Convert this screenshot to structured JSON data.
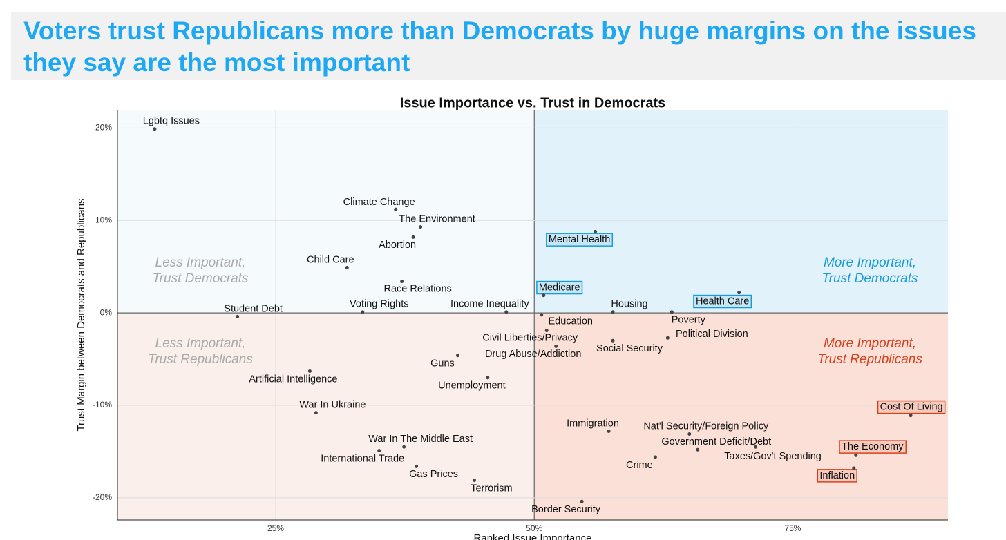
{
  "header": {
    "title": "Voters trust Republicans more than Democrats by huge margins on the issues they say are the most important"
  },
  "chart_data": {
    "type": "scatter",
    "title": "Issue Importance vs. Trust in Democrats",
    "x_label": "Ranked Issue Importance",
    "y_label": "Trust Margin between Democrats and Republicans",
    "labels": [
      "Lgbtq Issues",
      "Climate Change",
      "The Environment",
      "Abortion",
      "Child Care",
      "Race Relations",
      "Student Debt",
      "Voting Rights",
      "Income Inequality",
      "Mental Health",
      "Medicare",
      "Housing",
      "Health Care",
      "Poverty",
      "Education",
      "Civil Liberties/Privacy",
      "Drug Abuse/Addiction",
      "Social Security",
      "Political Division",
      "Guns",
      "Unemployment",
      "Artificial Intelligence",
      "War In Ukraine",
      "War In The Middle East",
      "International Trade",
      "Gas Prices",
      "Terrorism",
      "Border Security",
      "Immigration",
      "Nat'l Security/Foreign Policy",
      "Government Deficit/Debt",
      "Taxes/Gov't Spending",
      "Crime",
      "Cost Of Living",
      "The Economy",
      "Inflation"
    ],
    "x": [
      13.3,
      36.6,
      39.0,
      38.3,
      31.9,
      37.2,
      21.3,
      33.4,
      47.3,
      55.9,
      50.9,
      57.6,
      69.8,
      63.3,
      50.7,
      51.2,
      52.1,
      57.6,
      62.9,
      42.6,
      45.5,
      28.3,
      28.9,
      37.4,
      35.0,
      38.6,
      44.2,
      54.6,
      57.2,
      65.0,
      65.8,
      71.4,
      61.7,
      86.4,
      81.1,
      80.9
    ],
    "values": [
      19.9,
      11.2,
      9.3,
      8.2,
      4.9,
      3.4,
      -0.4,
      0.1,
      0.1,
      8.8,
      1.9,
      0.1,
      2.2,
      0.1,
      -0.2,
      -1.9,
      -3.6,
      -3.0,
      -2.7,
      -4.6,
      -7.0,
      -6.3,
      -10.8,
      -14.5,
      -14.9,
      -16.6,
      -18.1,
      -20.4,
      -12.8,
      -13.1,
      -14.8,
      -14.5,
      -15.6,
      -11.1,
      -15.4,
      -16.8
    ],
    "label_boxes": [
      null,
      null,
      null,
      null,
      null,
      null,
      null,
      null,
      null,
      "#1a9bd7",
      "#1a9bd7",
      null,
      "#1a9bd7",
      null,
      null,
      null,
      null,
      null,
      null,
      null,
      null,
      null,
      null,
      null,
      null,
      null,
      null,
      null,
      null,
      null,
      null,
      null,
      null,
      "#d9411e",
      "#d9411e",
      "#d9411e"
    ],
    "color": "#444444",
    "xlim": [
      9.7,
      90
    ],
    "ylim": [
      -22.4,
      21.9
    ],
    "xticks": [
      {
        "value": 25,
        "label": "25%"
      },
      {
        "value": 50,
        "label": "50%"
      },
      {
        "value": 75,
        "label": "75%"
      }
    ],
    "yticks": [
      {
        "value": 20,
        "label": "20%"
      },
      {
        "value": 10,
        "label": "10%"
      },
      {
        "value": 0,
        "label": "0%"
      },
      {
        "value": -10,
        "label": "-10%"
      },
      {
        "value": -20,
        "label": "-20%"
      }
    ],
    "grid": true,
    "annotations": [
      {
        "text": [
          "Less Important,",
          "Trust Democrats"
        ],
        "color": "#aaaaaa"
      },
      {
        "text": [
          "More Important,",
          "Trust Democrats"
        ],
        "color": "#1a9bd7"
      },
      {
        "text": [
          "Less Important,",
          "Trust Republicans"
        ],
        "color": "#aaaaaa"
      },
      {
        "text": [
          "More Important,",
          "Trust Republicans"
        ],
        "color": "#d9411e"
      }
    ],
    "quadrant_colors": [
      "#f5fafd",
      "#e1f2fb",
      "#fbefec",
      "#fbe0d7"
    ]
  }
}
